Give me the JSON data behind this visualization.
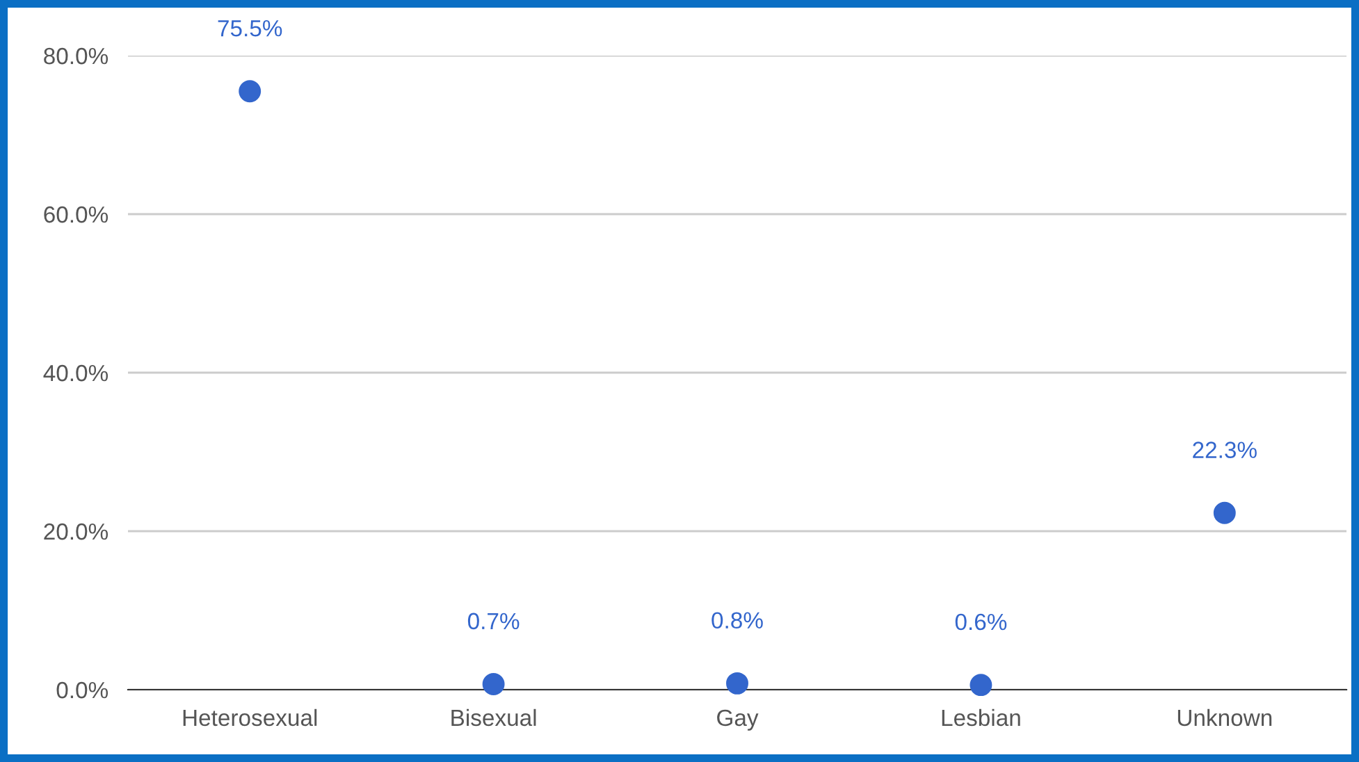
{
  "chart_data": {
    "type": "scatter",
    "categories": [
      "Heterosexual",
      "Bisexual",
      "Gay",
      "Lesbian",
      "Unknown"
    ],
    "series": [
      {
        "color": "#3366cc",
        "values": [
          75.5,
          0.7,
          0.8,
          0.6,
          22.3
        ],
        "value_labels": [
          "75.5%",
          "0.7%",
          "0.8%",
          "0.6%",
          "22.3%"
        ]
      }
    ],
    "ylim": [
      0,
      80
    ],
    "yticks": [
      {
        "value": 0,
        "label": "0.0%"
      },
      {
        "value": 20,
        "label": "20.0%"
      },
      {
        "value": 40,
        "label": "40.0%"
      },
      {
        "value": 60,
        "label": "60.0%"
      },
      {
        "value": 80,
        "label": "80.0%"
      }
    ],
    "grid": "y",
    "marker": "circle"
  }
}
